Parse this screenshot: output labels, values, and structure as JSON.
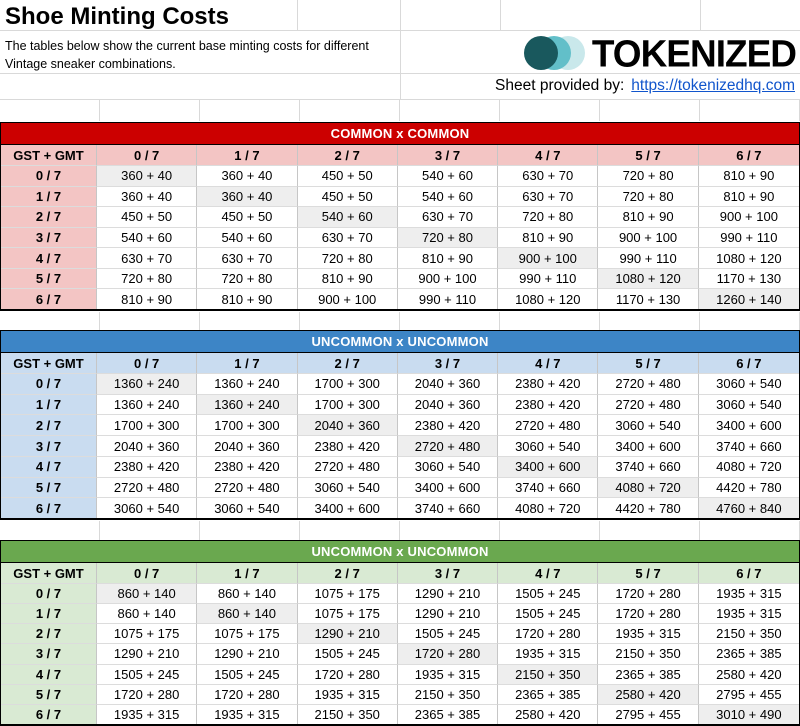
{
  "header": {
    "title": "Shoe Minting Costs",
    "description_line1": "The tables below show the current base minting costs for different",
    "description_line2": "Vintage sneaker combinations.",
    "logo": {
      "text": "TOKENIZED",
      "circle_colors": [
        "#C9E8EB",
        "#62BFC9",
        "#19585D"
      ]
    },
    "provided_by": {
      "label": "Sheet provided by:",
      "link_text": "https://tokenizedhq.com",
      "link_color": "#1155CC"
    }
  },
  "grid": {
    "corner_label": "GST + GMT",
    "col_headers": [
      "0 / 7",
      "1 / 7",
      "2 / 7",
      "3 / 7",
      "4 / 7",
      "5 / 7",
      "6 / 7"
    ],
    "row_headers": [
      "0 / 7",
      "1 / 7",
      "2 / 7",
      "3 / 7",
      "4 / 7",
      "5 / 7",
      "6 / 7"
    ],
    "diagonal_highlight_bg": "#EEEEEE"
  },
  "tables": [
    {
      "title": "COMMON x COMMON",
      "band_color": "#CC0000",
      "band_text_color": "#FFFFFF",
      "header_bg": "#F3C5C4",
      "rows": [
        [
          "360 + 40",
          "360 + 40",
          "450 + 50",
          "540 + 60",
          "630 + 70",
          "720 + 80",
          "810 + 90"
        ],
        [
          "360 + 40",
          "360 + 40",
          "450 + 50",
          "540 + 60",
          "630 + 70",
          "720 + 80",
          "810 + 90"
        ],
        [
          "450 + 50",
          "450 + 50",
          "540 + 60",
          "630 + 70",
          "720 + 80",
          "810 + 90",
          "900 + 100"
        ],
        [
          "540 + 60",
          "540 + 60",
          "630 + 70",
          "720 + 80",
          "810 + 90",
          "900 + 100",
          "990 + 110"
        ],
        [
          "630 + 70",
          "630 + 70",
          "720 + 80",
          "810 + 90",
          "900 + 100",
          "990 + 110",
          "1080 + 120"
        ],
        [
          "720 + 80",
          "720 + 80",
          "810 + 90",
          "900 + 100",
          "990 + 110",
          "1080 + 120",
          "1170 + 130"
        ],
        [
          "810 + 90",
          "810 + 90",
          "900 + 100",
          "990 + 110",
          "1080 + 120",
          "1170 + 130",
          "1260 + 140"
        ]
      ]
    },
    {
      "title": "UNCOMMON x UNCOMMON",
      "band_color": "#3D85C6",
      "band_text_color": "#FFFFFF",
      "header_bg": "#C9DCF0",
      "rows": [
        [
          "1360 + 240",
          "1360 + 240",
          "1700 + 300",
          "2040 + 360",
          "2380 + 420",
          "2720 + 480",
          "3060 + 540"
        ],
        [
          "1360 + 240",
          "1360 + 240",
          "1700 + 300",
          "2040 + 360",
          "2380 + 420",
          "2720 + 480",
          "3060 + 540"
        ],
        [
          "1700 + 300",
          "1700 + 300",
          "2040 + 360",
          "2380 + 420",
          "2720 + 480",
          "3060 + 540",
          "3400 + 600"
        ],
        [
          "2040 + 360",
          "2040 + 360",
          "2380 + 420",
          "2720 + 480",
          "3060 + 540",
          "3400 + 600",
          "3740 + 660"
        ],
        [
          "2380 + 420",
          "2380 + 420",
          "2720 + 480",
          "3060 + 540",
          "3400 + 600",
          "3740 + 660",
          "4080 + 720"
        ],
        [
          "2720 + 480",
          "2720 + 480",
          "3060 + 540",
          "3400 + 600",
          "3740 + 660",
          "4080 + 720",
          "4420 + 780"
        ],
        [
          "3060 + 540",
          "3060 + 540",
          "3400 + 600",
          "3740 + 660",
          "4080 + 720",
          "4420 + 780",
          "4760 + 840"
        ]
      ]
    },
    {
      "title": "UNCOMMON x UNCOMMON",
      "band_color": "#6AA84F",
      "band_text_color": "#FFFFFF",
      "header_bg": "#D9EAD3",
      "rows": [
        [
          "860 + 140",
          "860 + 140",
          "1075 + 175",
          "1290 + 210",
          "1505 + 245",
          "1720 + 280",
          "1935 + 315"
        ],
        [
          "860 + 140",
          "860 + 140",
          "1075 + 175",
          "1290 + 210",
          "1505 + 245",
          "1720 + 280",
          "1935 + 315"
        ],
        [
          "1075 + 175",
          "1075 + 175",
          "1290 + 210",
          "1505 + 245",
          "1720 + 280",
          "1935 + 315",
          "2150 + 350"
        ],
        [
          "1290 + 210",
          "1290 + 210",
          "1505 + 245",
          "1720 + 280",
          "1935 + 315",
          "2150 + 350",
          "2365 + 385"
        ],
        [
          "1505 + 245",
          "1505 + 245",
          "1720 + 280",
          "1935 + 315",
          "2150 + 350",
          "2365 + 385",
          "2580 + 420"
        ],
        [
          "1720 + 280",
          "1720 + 280",
          "1935 + 315",
          "2150 + 350",
          "2365 + 385",
          "2580 + 420",
          "2795 + 455"
        ],
        [
          "1935 + 315",
          "1935 + 315",
          "2150 + 350",
          "2365 + 385",
          "2580 + 420",
          "2795 + 455",
          "3010 + 490"
        ]
      ]
    }
  ]
}
